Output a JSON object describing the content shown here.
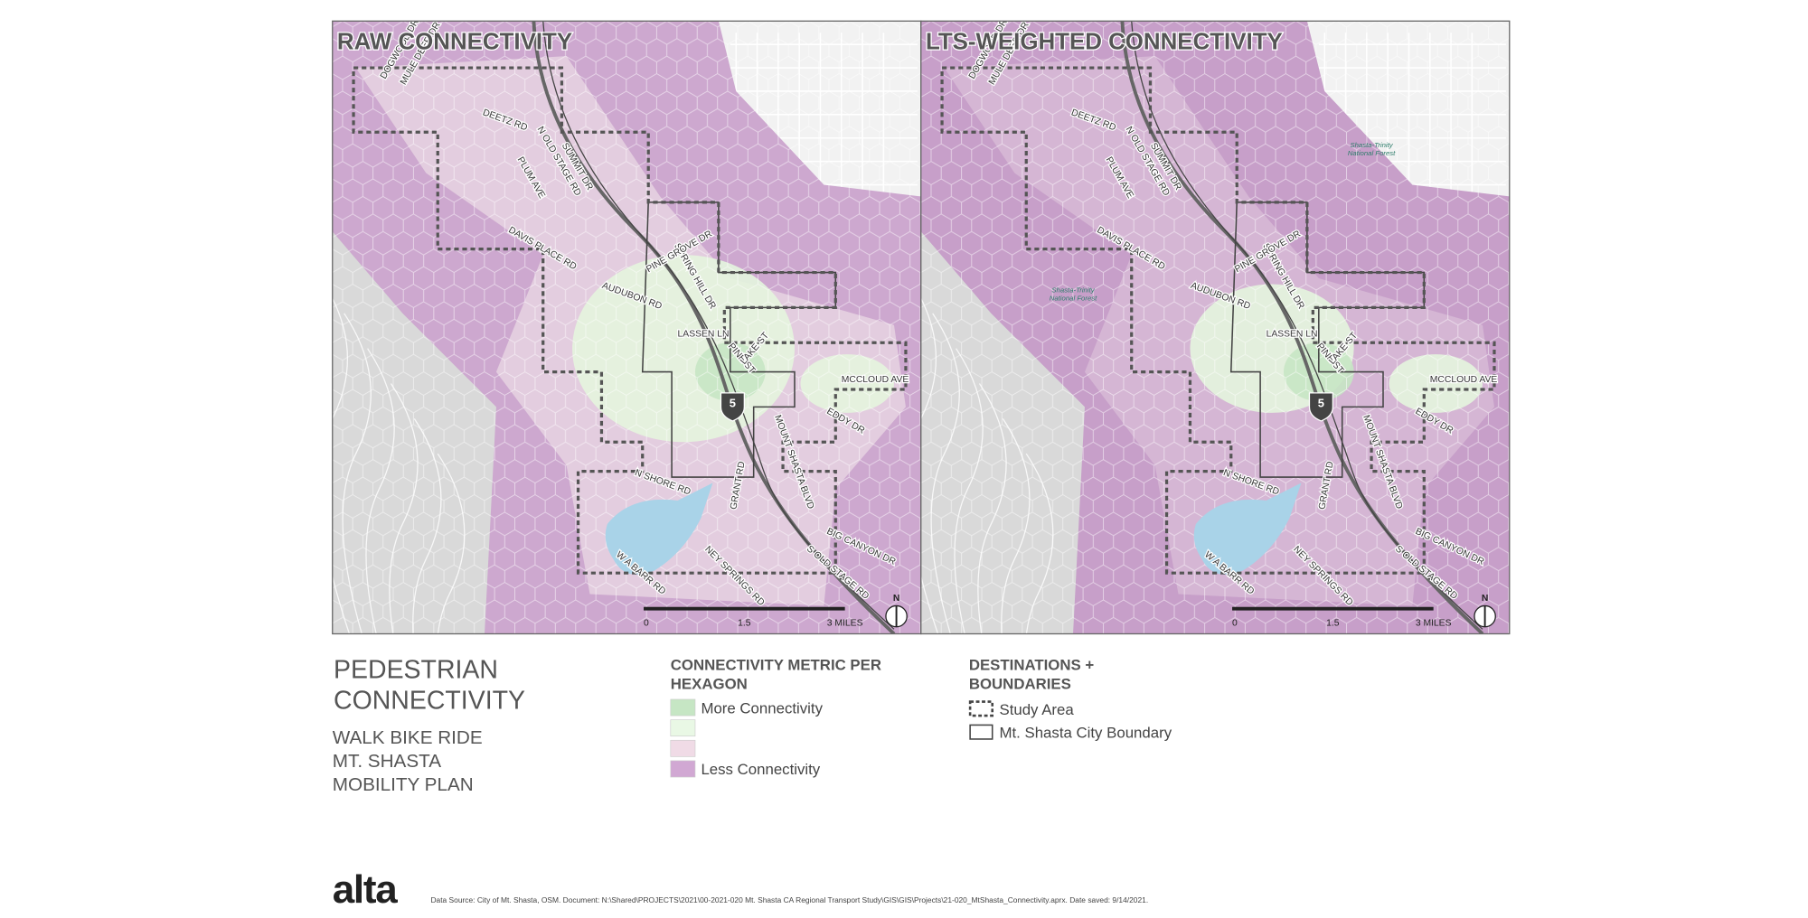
{
  "maps": [
    {
      "title": "RAW CONNECTIVITY"
    },
    {
      "title": "LTS-WEIGHTED CONNECTIVITY",
      "annotations": [
        "Shasta-Trinity",
        "National Forest"
      ]
    }
  ],
  "road_labels": [
    "DOGWOOD DR",
    "MULE DEER DR",
    "DEETZ RD",
    "N OLD STAGE RD",
    "SUMMIT DR",
    "PLUM AVE",
    "DAVIS PLACE RD",
    "SPRING HILL DR",
    "PINE GROVE DR",
    "AUDUBON RD",
    "LASSEN LN",
    "PINE ST",
    "LAKE ST",
    "MOUNT SHASTA BLVD",
    "MCCLOUD AVE",
    "EDDY DR",
    "N SHORE RD",
    "GRANT RD",
    "BIG CANYON DR",
    "NEY SPRINGS RD",
    "S OLD STAGE RD",
    "W A BARR RD"
  ],
  "shield": "5",
  "scale_labels": [
    "0",
    "1.5",
    "3 MILES"
  ],
  "north": "N",
  "legend": {
    "title_lines": [
      "PEDESTRIAN",
      "CONNECTIVITY"
    ],
    "subtitle_lines": [
      "WALK BIKE RIDE",
      "MT. SHASTA",
      "MOBILITY PLAN"
    ],
    "metric": {
      "title_lines": [
        "CONNECTIVITY METRIC PER",
        "HEXAGON"
      ],
      "items": [
        "More Connectivity",
        "Less Connectivity"
      ]
    },
    "boundaries": {
      "title_lines": [
        "DESTINATIONS +",
        "BOUNDARIES"
      ],
      "items": [
        "Study Area",
        "Mt. Shasta City Boundary"
      ]
    }
  },
  "footer": {
    "logo": "alta",
    "source": "Data Source: City of Mt. Shasta, OSM.  Document: N:\\Shared\\PROJECTS\\2021\\00-2021-020 Mt. Shasta CA Regional Transport Study\\GIS\\GIS\\Projects\\21-020_MtShasta_Connectivity.aprx.  Date saved: 9/14/2021."
  }
}
